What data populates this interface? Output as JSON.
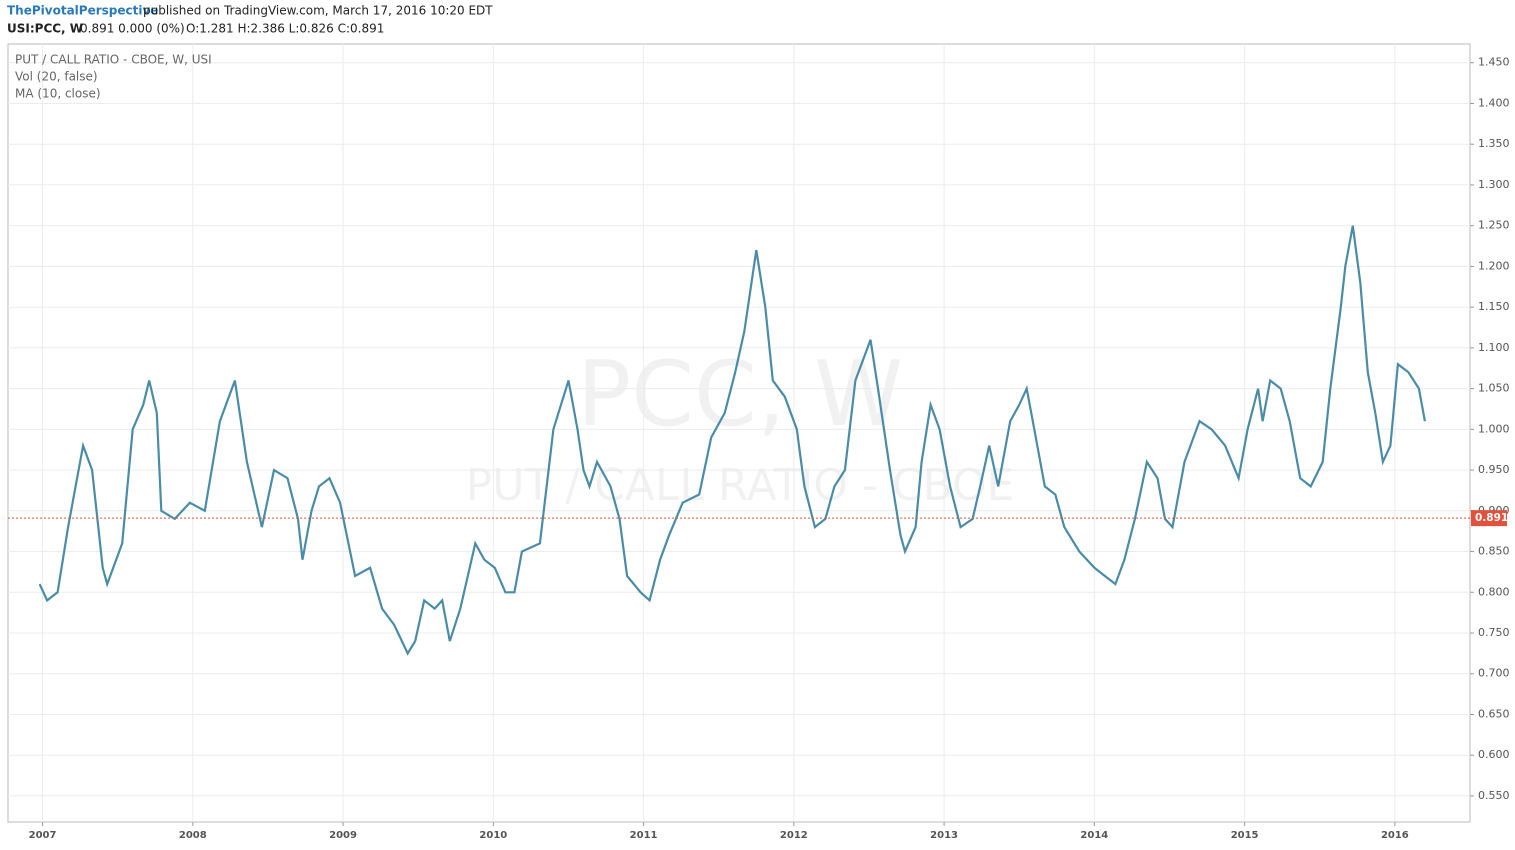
{
  "header": {
    "author": "ThePivotalPerspective",
    "published": "published on TradingView.com, March 17, 2016 10:20 EDT",
    "symbol": "USI:PCC, W",
    "change": "0.891 0.000 (0%)",
    "ohlc": "O:1.281 H:2.386 L:0.826 C:0.891"
  },
  "chart_data": {
    "type": "line",
    "title": "PUT / CALL RATIO - CBOE, W, USI",
    "indicator": "Vol (20, false)",
    "watermark": "PCC, W",
    "watermark_subtitle": "PUT / CALL RATIO - CBOE",
    "x": [
      2006.98,
      2007.03,
      2007.1,
      2007.17,
      2007.27,
      2007.33,
      2007.4,
      2007.43,
      2007.53,
      2007.6,
      2007.67,
      2007.71,
      2007.76,
      2007.79,
      2007.88,
      2007.98,
      2008.08,
      2008.18,
      2008.28,
      2008.36,
      2008.46,
      2008.54,
      2008.63,
      2008.7,
      2008.73,
      2008.79,
      2008.84,
      2008.91,
      2008.98,
      2009.08,
      2009.18,
      2009.26,
      2009.34,
      2009.43,
      2009.48,
      2009.54,
      2009.61,
      2009.66,
      2009.71,
      2009.78,
      2009.88,
      2009.94,
      2010.01,
      2010.08,
      2010.14,
      2010.19,
      2010.31,
      2010.4,
      2010.5,
      2010.56,
      2010.6,
      2010.64,
      2010.69,
      2010.78,
      2010.84,
      2010.89,
      2010.98,
      2011.04,
      2011.11,
      2011.17,
      2011.26,
      2011.37,
      2011.45,
      2011.54,
      2011.61,
      2011.67,
      2011.75,
      2011.81,
      2011.86,
      2011.94,
      2012.02,
      2012.07,
      2012.14,
      2012.21,
      2012.27,
      2012.34,
      2012.41,
      2012.47,
      2012.51,
      2012.56,
      2012.64,
      2012.71,
      2012.74,
      2012.81,
      2012.85,
      2012.91,
      2012.97,
      2013.04,
      2013.11,
      2013.19,
      2013.24,
      2013.3,
      2013.36,
      2013.44,
      2013.5,
      2013.55,
      2013.6,
      2013.67,
      2013.74,
      2013.8,
      2013.9,
      2014.0,
      2014.07,
      2014.14,
      2014.2,
      2014.27,
      2014.35,
      2014.42,
      2014.47,
      2014.52,
      2014.6,
      2014.7,
      2014.78,
      2014.87,
      2014.96,
      2015.02,
      2015.09,
      2015.12,
      2015.17,
      2015.24,
      2015.3,
      2015.37,
      2015.44,
      2015.52,
      2015.57,
      2015.64,
      2015.67,
      2015.72,
      2015.77,
      2015.82,
      2015.87,
      2015.92,
      2015.97,
      2016.02,
      2016.09,
      2016.16,
      2016.2
    ],
    "series": [
      {
        "name": "MA (10, close)",
        "color": "#4a8ca6",
        "values": [
          0.81,
          0.79,
          0.8,
          0.88,
          0.98,
          0.95,
          0.83,
          0.81,
          0.86,
          1.0,
          1.03,
          1.06,
          1.02,
          0.9,
          0.89,
          0.91,
          0.9,
          1.01,
          1.06,
          0.96,
          0.88,
          0.95,
          0.94,
          0.89,
          0.84,
          0.9,
          0.93,
          0.94,
          0.91,
          0.82,
          0.83,
          0.78,
          0.76,
          0.725,
          0.74,
          0.79,
          0.78,
          0.79,
          0.74,
          0.78,
          0.86,
          0.84,
          0.83,
          0.8,
          0.8,
          0.85,
          0.86,
          1.0,
          1.06,
          1.0,
          0.95,
          0.93,
          0.96,
          0.93,
          0.89,
          0.82,
          0.8,
          0.79,
          0.84,
          0.87,
          0.91,
          0.92,
          0.99,
          1.02,
          1.07,
          1.12,
          1.22,
          1.15,
          1.06,
          1.04,
          1.0,
          0.93,
          0.88,
          0.89,
          0.93,
          0.95,
          1.06,
          1.09,
          1.11,
          1.05,
          0.95,
          0.87,
          0.85,
          0.88,
          0.96,
          1.03,
          1.0,
          0.93,
          0.88,
          0.89,
          0.93,
          0.98,
          0.93,
          1.01,
          1.03,
          1.05,
          1.0,
          0.93,
          0.92,
          0.88,
          0.85,
          0.83,
          0.82,
          0.81,
          0.84,
          0.89,
          0.96,
          0.94,
          0.89,
          0.88,
          0.96,
          1.01,
          1.0,
          0.98,
          0.94,
          1.0,
          1.05,
          1.01,
          1.06,
          1.05,
          1.01,
          0.94,
          0.93,
          0.96,
          1.05,
          1.15,
          1.2,
          1.25,
          1.18,
          1.07,
          1.02,
          0.96,
          0.98,
          1.08,
          1.07,
          1.05,
          1.01
        ]
      }
    ],
    "price_line": {
      "value": 0.891,
      "color": "#e0523b"
    },
    "xlim": [
      2006.77,
      2016.5
    ],
    "xticks": [
      2007,
      2008,
      2009,
      2010,
      2011,
      2012,
      2013,
      2014,
      2015,
      2016
    ],
    "ylim": [
      0.518,
      1.473
    ],
    "yticks": [
      {
        "value": 0.55,
        "label": "0.550"
      },
      {
        "value": 0.6,
        "label": "0.600"
      },
      {
        "value": 0.65,
        "label": "0.650"
      },
      {
        "value": 0.7,
        "label": "0.700"
      },
      {
        "value": 0.75,
        "label": "0.750"
      },
      {
        "value": 0.8,
        "label": "0.800"
      },
      {
        "value": 0.85,
        "label": "0.850"
      },
      {
        "value": 0.9,
        "label": "0.900"
      },
      {
        "value": 0.95,
        "label": "0.950"
      },
      {
        "value": 1.0,
        "label": "1.000"
      },
      {
        "value": 1.05,
        "label": "1.050"
      },
      {
        "value": 1.1,
        "label": "1.100"
      },
      {
        "value": 1.15,
        "label": "1.150"
      },
      {
        "value": 1.2,
        "label": "1.200"
      },
      {
        "value": 1.25,
        "label": "1.250"
      },
      {
        "value": 1.3,
        "label": "1.300"
      },
      {
        "value": 1.35,
        "label": "1.350"
      },
      {
        "value": 1.4,
        "label": "1.400"
      },
      {
        "value": 1.45,
        "label": "1.450"
      }
    ],
    "grid": true
  }
}
